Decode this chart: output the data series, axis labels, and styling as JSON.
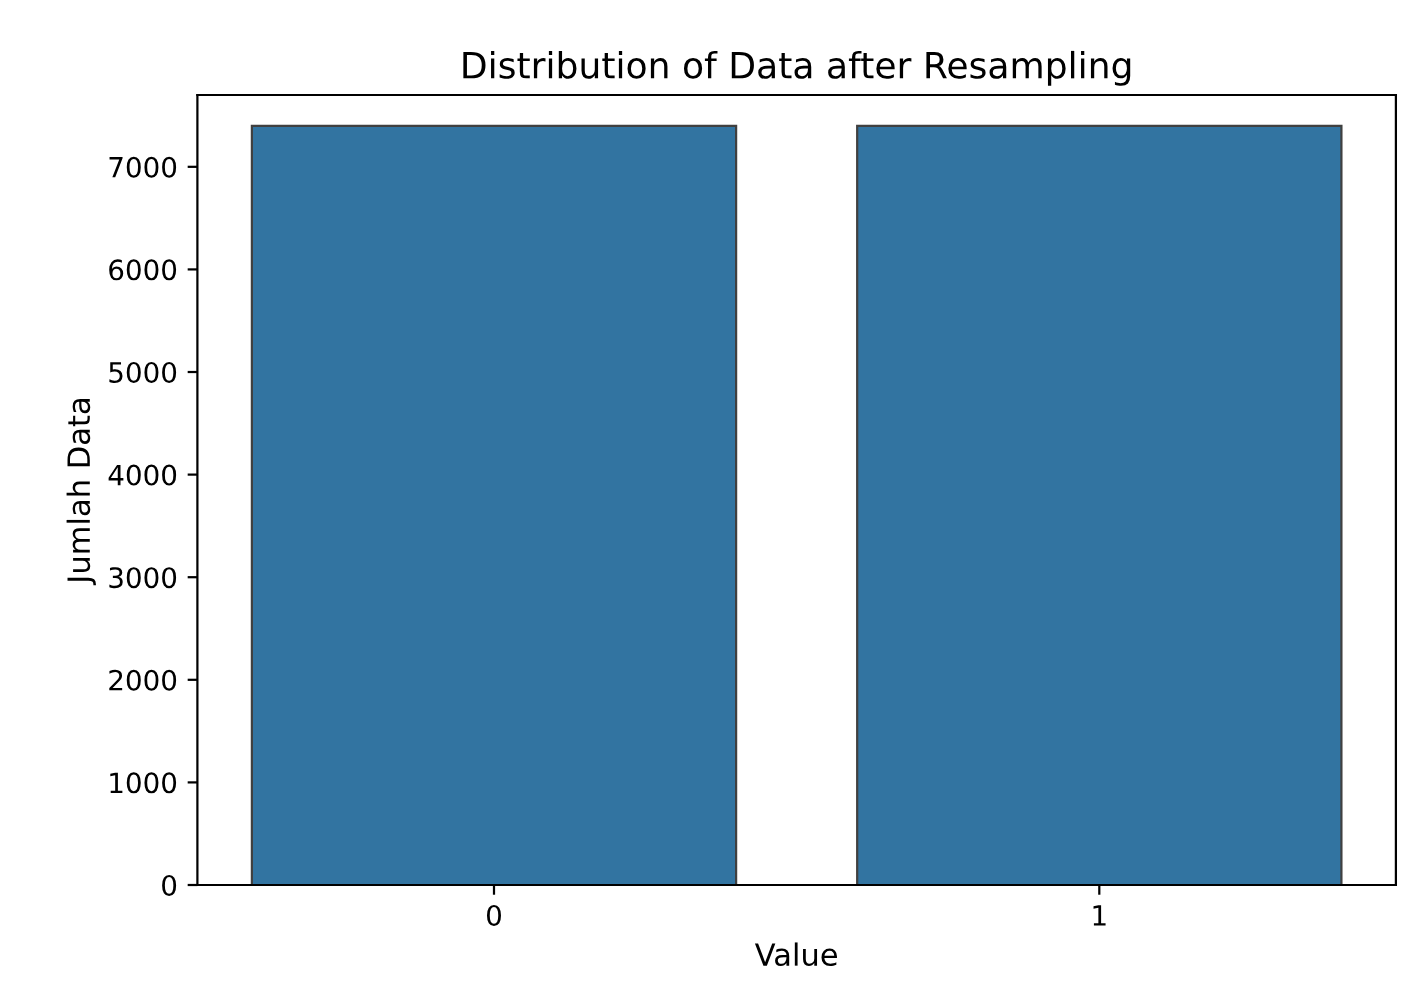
{
  "chart_data": {
    "type": "bar",
    "title": "Distribution of Data after Resampling",
    "xlabel": "Value",
    "ylabel": "Jumlah Data",
    "categories": [
      "0",
      "1"
    ],
    "series": [
      {
        "color": "#3274a1",
        "values": [
          7400,
          7400
        ]
      }
    ],
    "ylim": [
      0,
      7700
    ],
    "yticks": [
      0,
      1000,
      2000,
      3000,
      4000,
      5000,
      6000,
      7000
    ],
    "grid": false,
    "legend": false
  }
}
